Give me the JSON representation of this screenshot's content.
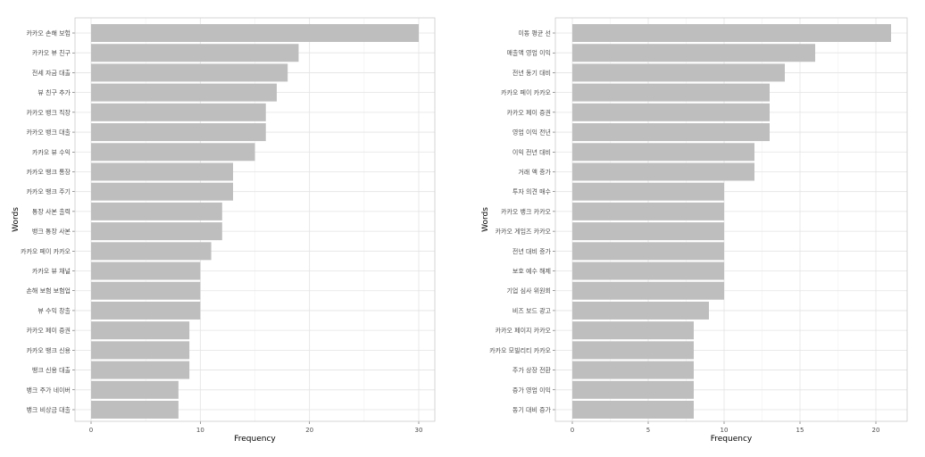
{
  "chart_data": [
    {
      "type": "bar",
      "orientation": "horizontal",
      "xlabel": "Frequency",
      "ylabel": "Words",
      "xlim": [
        0,
        30
      ],
      "xticks": [
        0,
        10,
        20,
        30
      ],
      "grid": true,
      "bar_color": "#bebebe",
      "categories": [
        "카카오 손해 보험",
        "카카오 뷰 친구",
        "전세 자금 대출",
        "뷰 친구 추가",
        "카카오 뱅크 직장",
        "카카오 뱅크 대출",
        "카카오 뷰 수익",
        "카카오 뱅크 통장",
        "카카오 뱅크 주기",
        "통장 사본 출력",
        "뱅크 통장 사본",
        "카카오 페이 카카오",
        "카카오 뷰 채널",
        "손해 보험 보험업",
        "뷰 수익 창출",
        "카카오 페이 증권",
        "카카오 뱅크 신용",
        "뱅크 신용 대출",
        "뱅크 주가 네이버",
        "뱅크 비상금 대출"
      ],
      "values": [
        30,
        19,
        18,
        17,
        16,
        16,
        15,
        13,
        13,
        12,
        12,
        11,
        10,
        10,
        10,
        9,
        9,
        9,
        8,
        8
      ]
    },
    {
      "type": "bar",
      "orientation": "horizontal",
      "xlabel": "Frequency",
      "ylabel": "Words",
      "xlim": [
        0,
        21
      ],
      "xticks": [
        0,
        5,
        10,
        15,
        20
      ],
      "grid": true,
      "bar_color": "#bebebe",
      "categories": [
        "이동 평균 선",
        "매출액 영업 이익",
        "전년 동기 대비",
        "카카오 페이 카카오",
        "카카오 페이 증권",
        "영업 이익 전년",
        "이익 전년 대비",
        "거래 액 증가",
        "투자 의견 매수",
        "카카오 뱅크 카카오",
        "카카오 게임즈 카카오",
        "전년 대비 증가",
        "보호 예수 해제",
        "기업 심사 위원회",
        "비즈 보드 광고",
        "카카오 페이지 카카오",
        "카카오 모빌리티 카카오",
        "주가 상장 전환",
        "증가 영업 이익",
        "동기 대비 증가"
      ],
      "values": [
        21,
        16,
        14,
        13,
        13,
        13,
        12,
        12,
        10,
        10,
        10,
        10,
        10,
        10,
        9,
        8,
        8,
        8,
        8,
        8
      ]
    }
  ]
}
